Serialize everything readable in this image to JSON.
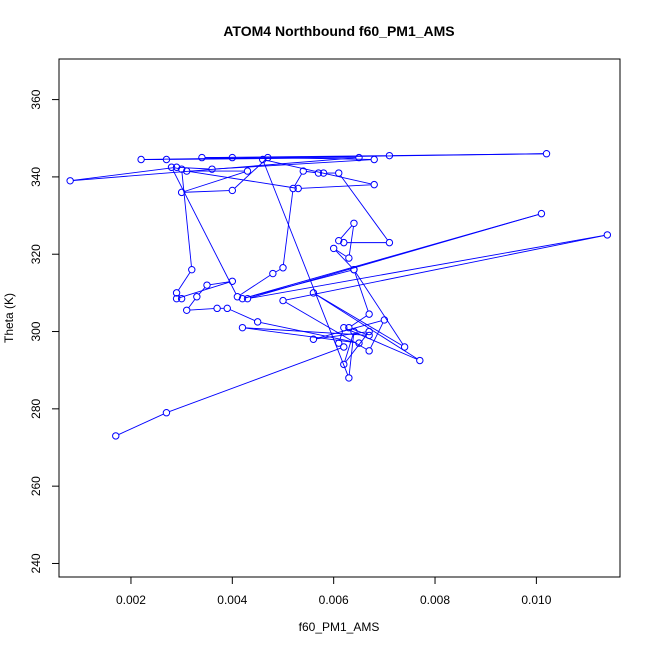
{
  "chart_data": {
    "type": "line",
    "title": "ATOM4 Northbound f60_PM1_AMS",
    "xlabel": "f60_PM1_AMS",
    "ylabel": "Theta (K)",
    "xlim": [
      0.00058,
      0.01165
    ],
    "ylim": [
      236.5,
      370.5
    ],
    "x_ticks": [
      0.002,
      0.004,
      0.006,
      0.008,
      0.01
    ],
    "x_tick_labels": [
      "0.002",
      "0.004",
      "0.006",
      "0.008",
      "0.010"
    ],
    "y_ticks": [
      240,
      260,
      280,
      300,
      320,
      340,
      360
    ],
    "y_tick_labels": [
      "240",
      "260",
      "280",
      "300",
      "320",
      "340",
      "360"
    ],
    "grid": false,
    "series": [
      {
        "color": "#0000ff",
        "marker": "open-circle",
        "x": [
          0.0017,
          0.0027,
          0.0062,
          0.0061,
          0.0062,
          0.0077,
          0.0056,
          0.0074,
          0.0064,
          0.0067,
          0.0063,
          0.0067,
          0.0042,
          0.0065,
          0.0045,
          0.0039,
          0.0037,
          0.0031,
          0.0033,
          0.0035,
          0.004,
          0.0029,
          0.003,
          0.0029,
          0.0032,
          0.003,
          0.0028,
          0.0041,
          0.0048,
          0.005,
          0.0052,
          0.0054,
          0.0057,
          0.0058,
          0.0061,
          0.0071,
          0.0062,
          0.0061,
          0.0064,
          0.0063,
          0.006,
          0.0064,
          0.0042,
          0.0101,
          0.0043,
          0.0114,
          0.005,
          0.0067,
          0.007,
          0.0056,
          0.0067,
          0.0062,
          0.0064,
          0.0063,
          0.0046,
          0.0068,
          0.0053,
          0.0031,
          0.0043,
          0.003,
          0.004,
          0.0047,
          0.0068,
          0.0036,
          0.0029,
          0.0008,
          0.0065,
          0.0027,
          0.0022,
          0.0102,
          0.0071,
          0.0034,
          0.004
        ],
        "y": [
          273,
          279,
          296,
          297,
          301,
          292.5,
          310,
          296,
          316,
          304.5,
          301,
          299,
          301,
          297,
          302.5,
          306,
          306,
          305.5,
          309,
          312,
          313,
          308.5,
          308.5,
          310,
          316,
          342,
          342.5,
          309,
          315,
          316.5,
          337,
          341.5,
          341,
          341,
          341,
          323,
          323,
          323.5,
          328,
          319,
          321.5,
          316,
          308.5,
          330.5,
          308.5,
          325,
          308,
          295,
          303,
          298,
          300,
          291.5,
          300,
          288,
          344.5,
          338,
          337,
          341.5,
          341.5,
          336,
          336.5,
          345,
          344.5,
          342,
          342.5,
          339,
          345,
          344.5,
          344.5,
          346,
          345.5,
          345,
          345
        ]
      }
    ]
  }
}
